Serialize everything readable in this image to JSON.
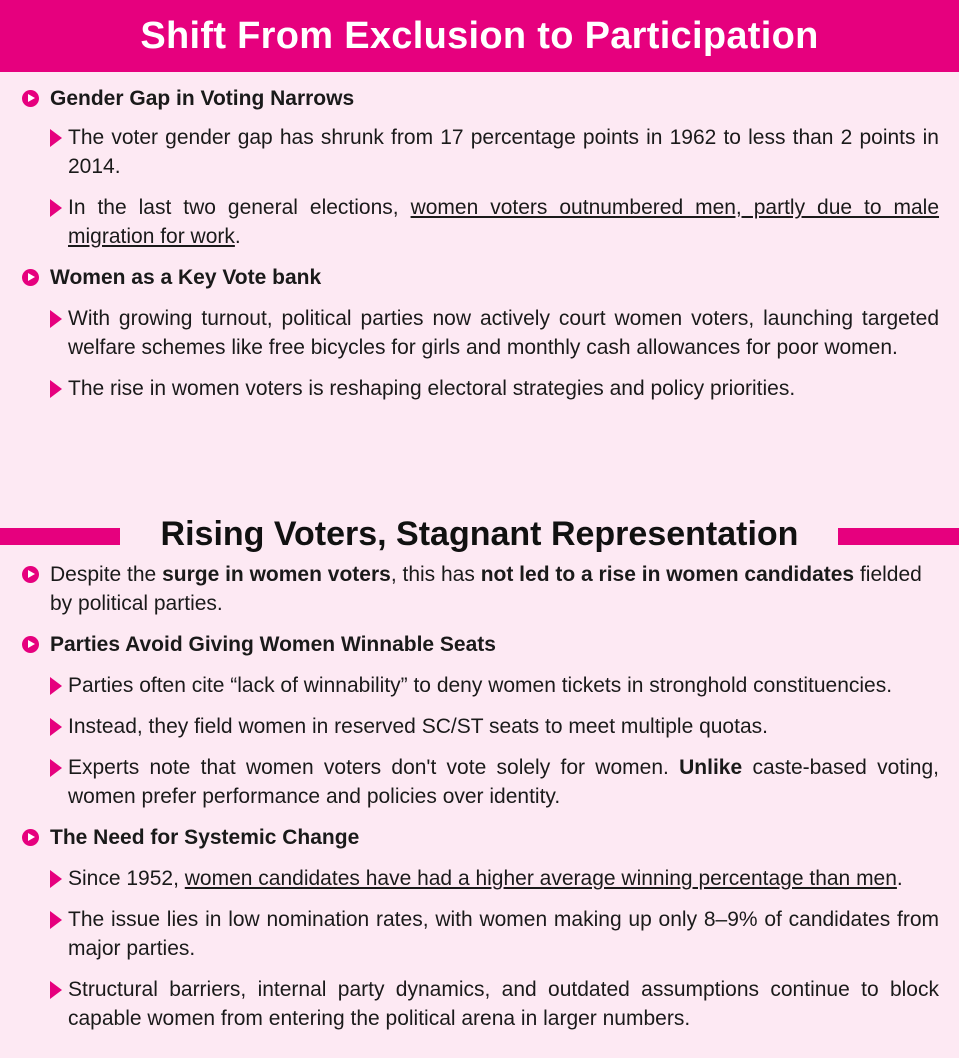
{
  "title": "Shift From Exclusion to Participation",
  "section1": {
    "gender_gap": {
      "heading": "Gender Gap in Voting Narrows",
      "p1": "The voter gender gap has shrunk from 17 percentage points in 1962 to less than 2 points in 2014.",
      "p2_pre": "In the last two general elections, ",
      "p2_underline": "women voters outnumbered men, partly due to male migration for work",
      "p2_post": "."
    },
    "vote_bank": {
      "heading": "Women as a Key Vote bank",
      "p1": "With growing turnout, political parties now actively court women voters, launching targeted welfare schemes like free bicycles for girls and monthly cash allowances for poor women.",
      "p2": "The rise in women voters is reshaping electoral strategies and policy priorities."
    }
  },
  "section2": {
    "heading": "Rising Voters, Stagnant Representation",
    "intro_pre": "Despite the ",
    "intro_bold1": "surge in women voters",
    "intro_mid": ", this has ",
    "intro_bold2": "not led to a rise in women candidates",
    "intro_post": " fielded by political parties.",
    "winnable": {
      "heading": "Parties Avoid Giving Women Winnable Seats",
      "p1": "Parties often cite “lack of winnability” to deny women tickets in stronghold constituencies.",
      "p2": "Instead, they field women in reserved SC/ST seats to meet multiple quotas.",
      "p3_pre": "Experts note that women voters don't vote solely for women. ",
      "p3_bold": "Unlike",
      "p3_post": " caste-based voting, women prefer performance and policies over identity."
    },
    "systemic": {
      "heading": "The Need for Systemic Change",
      "p1_pre": "Since 1952, ",
      "p1_underline": "women candidates have had a higher average winning percentage than men",
      "p1_post": ".",
      "p2": "The issue lies in low nomination rates, with women making up only 8–9% of candidates from major parties.",
      "p3": "Structural barriers, internal party dynamics, and outdated assumptions continue to block capable women from entering the political arena in larger numbers."
    }
  },
  "colors": {
    "accent": "#e6007e",
    "background": "#fde9f3"
  }
}
